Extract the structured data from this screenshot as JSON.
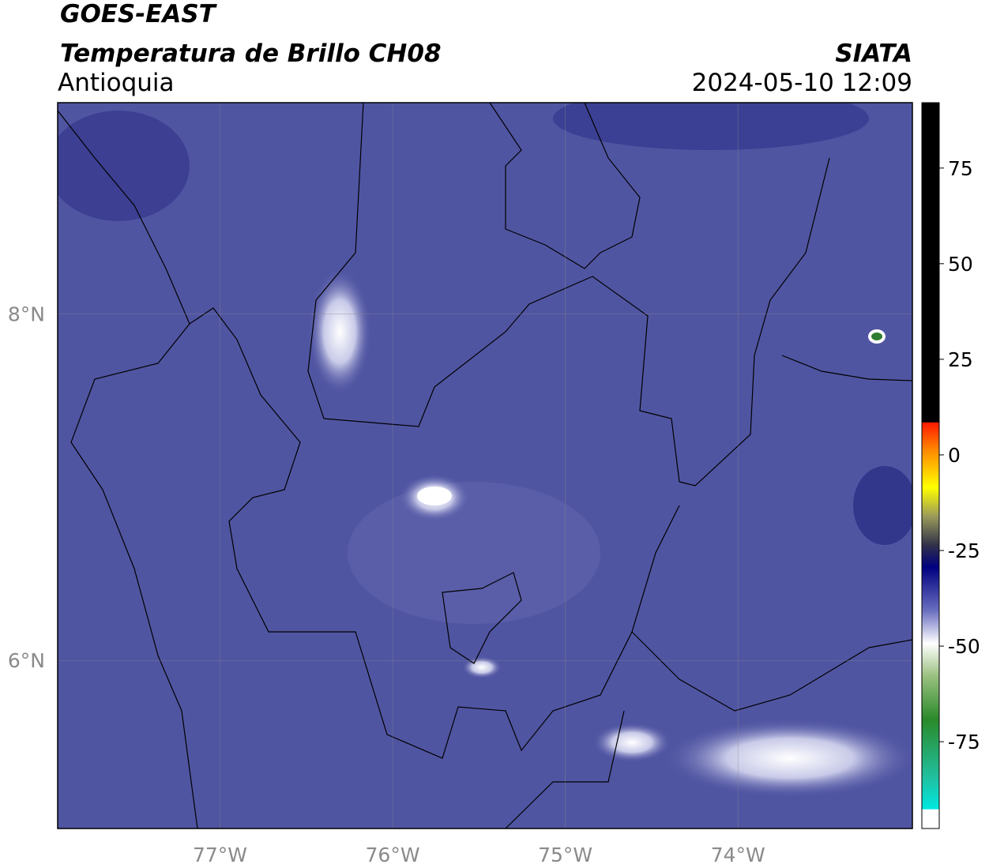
{
  "chart_data": {
    "type": "map",
    "title": "GOES-EAST",
    "subtitle": "Temperatura de Brillo CH08",
    "region": "Antioquia",
    "source": "SIATA",
    "timestamp": "2024-05-10 12:09",
    "xlim": [
      -77.94,
      -72.99
    ],
    "ylim": [
      5.03,
      9.22
    ],
    "xticks": [
      {
        "value": -77,
        "label": "77°W"
      },
      {
        "value": -76,
        "label": "76°W"
      },
      {
        "value": -75,
        "label": "75°W"
      },
      {
        "value": -74,
        "label": "74°W"
      }
    ],
    "yticks": [
      {
        "value": 8,
        "label": "8°N"
      },
      {
        "value": 6,
        "label": "6°N"
      }
    ],
    "colorbar": {
      "lim": [
        -97.7,
        92.1
      ],
      "ticks": [
        75,
        50,
        25,
        0,
        -25,
        -50,
        -75
      ]
    },
    "grid": true
  }
}
